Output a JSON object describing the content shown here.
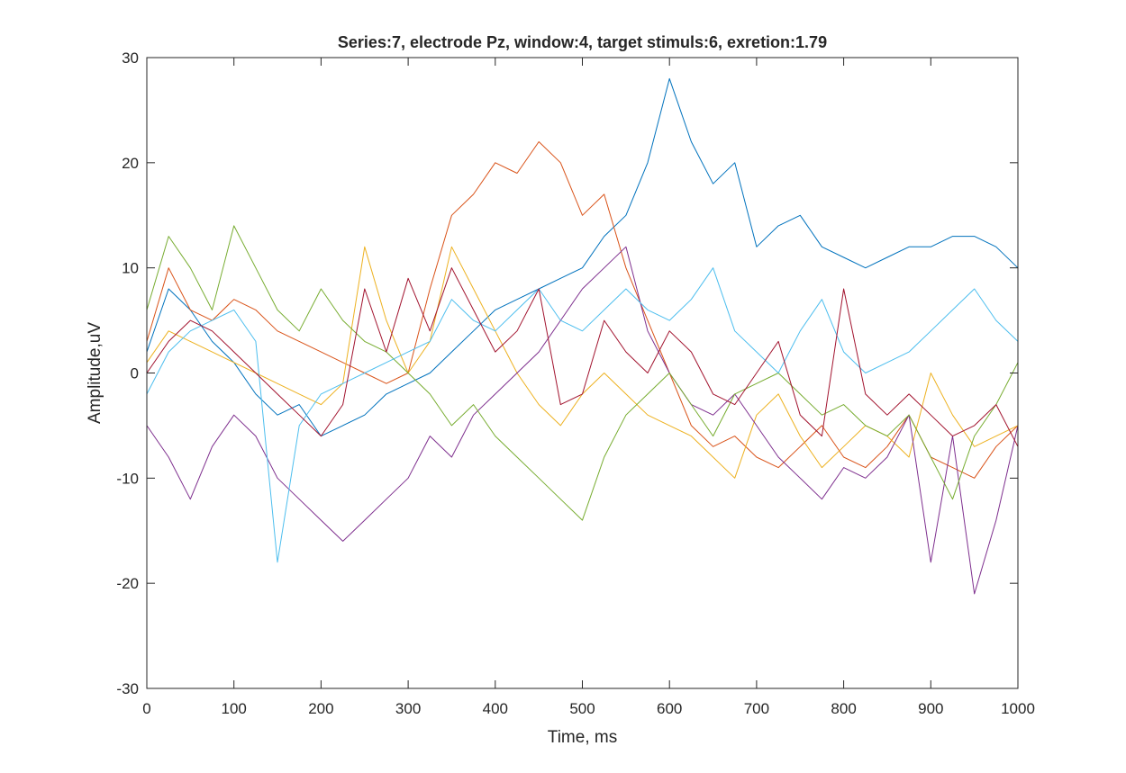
{
  "chart_data": {
    "type": "line",
    "title": "Series:7, electrode Pz, window:4, target stimuls:6, exretion:1.79",
    "xlabel": "Time, ms",
    "ylabel": "Amplitude,uV",
    "xlim": [
      0,
      1000
    ],
    "ylim": [
      -30,
      30
    ],
    "grid": false,
    "legend": "none",
    "x_ticks": [
      "0",
      "100",
      "200",
      "300",
      "400",
      "500",
      "600",
      "700",
      "800",
      "900",
      "1000"
    ],
    "y_ticks": [
      "-30",
      "-20",
      "-10",
      "0",
      "10",
      "20",
      "30"
    ],
    "x": [
      0,
      25,
      50,
      75,
      100,
      125,
      150,
      175,
      200,
      225,
      250,
      275,
      300,
      325,
      350,
      375,
      400,
      425,
      450,
      475,
      500,
      525,
      550,
      575,
      600,
      625,
      650,
      675,
      700,
      725,
      750,
      775,
      800,
      825,
      850,
      875,
      900,
      925,
      950,
      975,
      1000
    ],
    "series": [
      {
        "color": "#0072BD",
        "values": [
          2,
          8,
          6,
          3,
          1,
          -2,
          -4,
          -3,
          -6,
          -5,
          -4,
          -2,
          -1,
          0,
          2,
          4,
          6,
          7,
          8,
          9,
          10,
          13,
          15,
          20,
          28,
          22,
          18,
          20,
          12,
          14,
          15,
          12,
          11,
          10,
          11,
          12,
          12,
          13,
          13,
          12,
          10
        ]
      },
      {
        "color": "#D95319",
        "values": [
          3,
          10,
          6,
          5,
          7,
          6,
          4,
          3,
          2,
          1,
          0,
          -1,
          0,
          8,
          15,
          17,
          20,
          19,
          22,
          20,
          15,
          17,
          10,
          5,
          0,
          -5,
          -7,
          -6,
          -8,
          -9,
          -7,
          -5,
          -8,
          -9,
          -7,
          -4,
          -8,
          -9,
          -10,
          -7,
          -5
        ]
      },
      {
        "color": "#EDB120",
        "values": [
          1,
          4,
          3,
          2,
          1,
          0,
          -1,
          -2,
          -3,
          -1,
          12,
          5,
          0,
          3,
          12,
          8,
          4,
          0,
          -3,
          -5,
          -2,
          0,
          -2,
          -4,
          -5,
          -6,
          -8,
          -10,
          -4,
          -2,
          -6,
          -9,
          -7,
          -5,
          -6,
          -8,
          0,
          -4,
          -7,
          -6,
          -5
        ]
      },
      {
        "color": "#7E2F8E",
        "values": [
          -5,
          -8,
          -12,
          -7,
          -4,
          -6,
          -10,
          -12,
          -14,
          -16,
          -14,
          -12,
          -10,
          -6,
          -8,
          -4,
          -2,
          0,
          2,
          5,
          8,
          10,
          12,
          4,
          0,
          -3,
          -4,
          -2,
          -5,
          -8,
          -10,
          -12,
          -9,
          -10,
          -8,
          -4,
          -18,
          -6,
          -21,
          -14,
          -5
        ]
      },
      {
        "color": "#77AC30",
        "values": [
          6,
          13,
          10,
          6,
          14,
          10,
          6,
          4,
          8,
          5,
          3,
          2,
          0,
          -2,
          -5,
          -3,
          -6,
          -8,
          -10,
          -12,
          -14,
          -8,
          -4,
          -2,
          0,
          -3,
          -6,
          -2,
          -1,
          0,
          -2,
          -4,
          -3,
          -5,
          -6,
          -4,
          -8,
          -12,
          -6,
          -3,
          1
        ]
      },
      {
        "color": "#4DBEEE",
        "values": [
          -2,
          2,
          4,
          5,
          6,
          3,
          -18,
          -5,
          -2,
          -1,
          0,
          1,
          2,
          3,
          7,
          5,
          4,
          6,
          8,
          5,
          4,
          6,
          8,
          6,
          5,
          7,
          10,
          4,
          2,
          0,
          4,
          7,
          2,
          0,
          1,
          2,
          4,
          6,
          8,
          5,
          3
        ]
      },
      {
        "color": "#A2142F",
        "values": [
          0,
          3,
          5,
          4,
          2,
          0,
          -2,
          -4,
          -6,
          -3,
          8,
          2,
          9,
          4,
          10,
          6,
          2,
          4,
          8,
          -3,
          -2,
          5,
          2,
          0,
          4,
          2,
          -2,
          -3,
          0,
          3,
          -4,
          -6,
          8,
          -2,
          -4,
          -2,
          -4,
          -6,
          -5,
          -3,
          -7
        ]
      }
    ]
  }
}
